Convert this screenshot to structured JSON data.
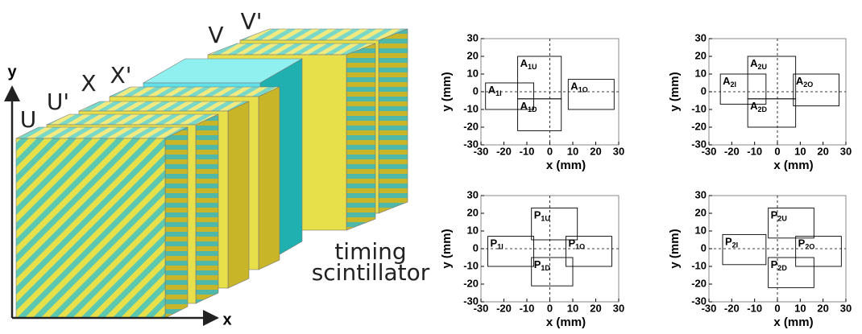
{
  "diagram": {
    "planes": [
      "U",
      "U'",
      "X",
      "X'",
      "V",
      "V'"
    ],
    "scintillator": [
      "timing",
      "scintillator"
    ],
    "axis_x": "x",
    "axis_y": "y"
  },
  "panels": [
    {
      "xlabel": "x (mm)",
      "ylabel": "y (mm)",
      "xlim": [
        -30,
        30
      ],
      "ylim": [
        -30,
        30
      ],
      "xticks": [
        -30,
        -20,
        -10,
        0,
        10,
        20,
        30
      ],
      "yticks": [
        -30,
        -20,
        -10,
        0,
        10,
        20,
        30
      ],
      "rects": [
        {
          "base": "A",
          "sub": "1U",
          "x": [
            -14,
            5
          ],
          "y": [
            -4,
            20
          ]
        },
        {
          "base": "A",
          "sub": "1I",
          "x": [
            -28,
            -7
          ],
          "y": [
            -10,
            5
          ]
        },
        {
          "base": "A",
          "sub": "1O",
          "x": [
            8,
            28
          ],
          "y": [
            -10,
            7
          ]
        },
        {
          "base": "A",
          "sub": "1D",
          "x": [
            -14,
            5
          ],
          "y": [
            -22,
            -4
          ]
        }
      ]
    },
    {
      "xlabel": "x (mm)",
      "ylabel": "y (mm)",
      "xlim": [
        -30,
        30
      ],
      "ylim": [
        -30,
        30
      ],
      "xticks": [
        -30,
        -20,
        -10,
        0,
        10,
        20,
        30
      ],
      "yticks": [
        -30,
        -20,
        -10,
        0,
        10,
        20,
        30
      ],
      "rects": [
        {
          "base": "A",
          "sub": "2U",
          "x": [
            -13,
            8
          ],
          "y": [
            -4,
            20
          ]
        },
        {
          "base": "A",
          "sub": "2I",
          "x": [
            -25,
            -5
          ],
          "y": [
            -7,
            10
          ]
        },
        {
          "base": "A",
          "sub": "2O",
          "x": [
            7,
            27
          ],
          "y": [
            -8,
            10
          ]
        },
        {
          "base": "A",
          "sub": "2D",
          "x": [
            -13,
            8
          ],
          "y": [
            -20,
            -4
          ]
        }
      ]
    },
    {
      "xlabel": "x (mm)",
      "ylabel": "y (mm)",
      "xlim": [
        -30,
        30
      ],
      "ylim": [
        -30,
        30
      ],
      "xticks": [
        -30,
        -20,
        -10,
        0,
        10,
        20,
        30
      ],
      "yticks": [
        -30,
        -20,
        -10,
        0,
        10,
        20,
        30
      ],
      "rects": [
        {
          "base": "P",
          "sub": "1U",
          "x": [
            -8,
            12
          ],
          "y": [
            5,
            23
          ]
        },
        {
          "base": "P",
          "sub": "1I",
          "x": [
            -27,
            -7
          ],
          "y": [
            -10,
            7
          ]
        },
        {
          "base": "P",
          "sub": "1O",
          "x": [
            7,
            27
          ],
          "y": [
            -10,
            7
          ]
        },
        {
          "base": "P",
          "sub": "1D",
          "x": [
            -8,
            10
          ],
          "y": [
            -21,
            -5
          ]
        }
      ]
    },
    {
      "xlabel": "x (mm)",
      "ylabel": "y (mm)",
      "xlim": [
        -30,
        30
      ],
      "ylim": [
        -30,
        30
      ],
      "xticks": [
        -30,
        -20,
        -10,
        0,
        10,
        20,
        30
      ],
      "yticks": [
        -30,
        -20,
        -10,
        0,
        10,
        20,
        30
      ],
      "rects": [
        {
          "base": "P",
          "sub": "2U",
          "x": [
            -4,
            16
          ],
          "y": [
            6,
            23
          ]
        },
        {
          "base": "P",
          "sub": "2I",
          "x": [
            -24,
            -5
          ],
          "y": [
            -9,
            8
          ]
        },
        {
          "base": "P",
          "sub": "2O",
          "x": [
            8,
            28
          ],
          "y": [
            -10,
            7
          ]
        },
        {
          "base": "P",
          "sub": "2D",
          "x": [
            -4,
            16
          ],
          "y": [
            -22,
            -5
          ]
        }
      ]
    }
  ]
}
